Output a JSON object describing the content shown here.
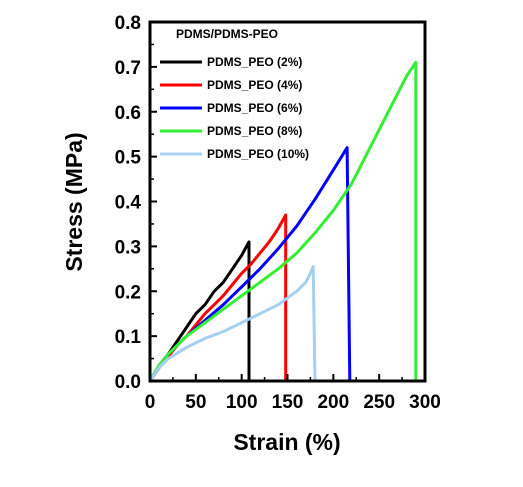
{
  "chart_data": {
    "type": "line",
    "xlabel": "Strain (%)",
    "ylabel": "Stress (MPa)",
    "xlim": [
      0,
      300
    ],
    "ylim": [
      0,
      0.8
    ],
    "xticks": [
      0,
      50,
      100,
      150,
      200,
      250,
      300
    ],
    "yticks": [
      0.0,
      0.1,
      0.2,
      0.3,
      0.4,
      0.5,
      0.6,
      0.7,
      0.8
    ],
    "xtick_labels": [
      "0",
      "50",
      "100",
      "150",
      "200",
      "250",
      "300"
    ],
    "ytick_labels": [
      "0.0",
      "0.1",
      "0.2",
      "0.3",
      "0.4",
      "0.5",
      "0.6",
      "0.7",
      "0.8"
    ],
    "grid": false,
    "legend_title": "PDMS/PDMS-PEO",
    "legend_position": "top-left",
    "series": [
      {
        "name": "PDMS_PEO (2%)",
        "color": "#000000",
        "x": [
          0,
          10,
          20,
          30,
          40,
          50,
          60,
          70,
          80,
          90,
          100,
          108,
          108
        ],
        "y": [
          0,
          0.03,
          0.06,
          0.09,
          0.12,
          0.15,
          0.17,
          0.2,
          0.22,
          0.25,
          0.28,
          0.31,
          0
        ]
      },
      {
        "name": "PDMS_PEO (4%)",
        "color": "#ff0000",
        "x": [
          0,
          10,
          20,
          30,
          40,
          50,
          60,
          70,
          80,
          90,
          100,
          110,
          120,
          130,
          140,
          148,
          148
        ],
        "y": [
          0,
          0.03,
          0.055,
          0.08,
          0.1,
          0.125,
          0.15,
          0.17,
          0.19,
          0.215,
          0.24,
          0.26,
          0.285,
          0.31,
          0.34,
          0.37,
          0
        ]
      },
      {
        "name": "PDMS_PEO (6%)",
        "color": "#0000ff",
        "x": [
          0,
          10,
          20,
          40,
          60,
          80,
          100,
          120,
          140,
          160,
          180,
          200,
          215,
          218
        ],
        "y": [
          0,
          0.035,
          0.06,
          0.1,
          0.135,
          0.17,
          0.21,
          0.25,
          0.295,
          0.345,
          0.405,
          0.47,
          0.52,
          0
        ]
      },
      {
        "name": "PDMS_PEO (8%)",
        "color": "#33ee33",
        "x": [
          0,
          10,
          20,
          40,
          60,
          80,
          100,
          120,
          140,
          160,
          180,
          200,
          220,
          240,
          260,
          280,
          290,
          290
        ],
        "y": [
          0,
          0.035,
          0.06,
          0.1,
          0.13,
          0.16,
          0.19,
          0.22,
          0.25,
          0.285,
          0.33,
          0.38,
          0.44,
          0.52,
          0.6,
          0.68,
          0.71,
          0
        ]
      },
      {
        "name": "PDMS_PEO (10%)",
        "color": "#a6d0f0",
        "x": [
          0,
          10,
          20,
          40,
          60,
          80,
          100,
          120,
          140,
          160,
          170,
          175,
          178,
          180
        ],
        "y": [
          0,
          0.03,
          0.05,
          0.075,
          0.095,
          0.11,
          0.13,
          0.15,
          0.17,
          0.2,
          0.22,
          0.24,
          0.255,
          0
        ]
      }
    ]
  }
}
